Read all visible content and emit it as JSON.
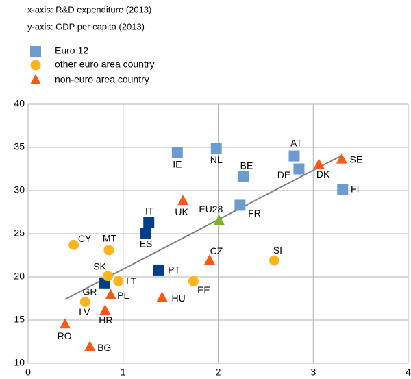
{
  "chart_data": {
    "type": "scatter",
    "header": [
      "x-axis: R&D expenditure (2013)",
      "y-axis: GDP per capita (2013)"
    ],
    "xlim": [
      0,
      4
    ],
    "xticks": [
      0,
      1,
      2,
      3,
      4
    ],
    "ylim": [
      10,
      40
    ],
    "yticks": [
      10,
      15,
      20,
      25,
      30,
      35,
      40
    ],
    "grid": true,
    "series": [
      {
        "name": "Euro 12",
        "marker": "square",
        "color": "#6c9bd2",
        "labels": [
          "IE",
          "NL",
          "AT",
          "DE",
          "BE",
          "FR",
          "FI",
          "IT",
          "ES",
          "PT",
          "GR"
        ],
        "x": [
          1.57,
          1.98,
          2.8,
          2.85,
          2.27,
          2.23,
          3.31,
          1.27,
          1.24,
          1.37,
          0.8
        ],
        "y": [
          34.4,
          34.9,
          34.0,
          32.5,
          31.6,
          28.3,
          30.1,
          26.3,
          25.0,
          20.8,
          19.3
        ],
        "colors": [
          "#6c9bd2",
          "#6c9bd2",
          "#6c9bd2",
          "#6c9bd2",
          "#6c9bd2",
          "#6c9bd2",
          "#6c9bd2",
          "#003f8a",
          "#003f8a",
          "#003f8a",
          "#003f8a"
        ]
      },
      {
        "name": "other euro area country",
        "marker": "circle",
        "color": "#ffb41e",
        "labels": [
          "CY",
          "MT",
          "SK",
          "LT",
          "LV",
          "EE",
          "SI"
        ],
        "x": [
          0.48,
          0.85,
          0.84,
          0.95,
          0.6,
          1.74,
          2.59
        ],
        "y": [
          23.7,
          23.1,
          20.1,
          19.5,
          17.1,
          19.5,
          21.9
        ]
      },
      {
        "name": "non-euro area country",
        "marker": "triangle",
        "color": "#f85a16",
        "labels": [
          "RO",
          "BG",
          "HR",
          "PL",
          "HU",
          "CZ",
          "UK",
          "DK",
          "SE"
        ],
        "x": [
          0.39,
          0.65,
          0.81,
          0.87,
          1.41,
          1.91,
          1.63,
          3.06,
          3.3
        ],
        "y": [
          14.5,
          11.9,
          16.1,
          17.9,
          17.6,
          21.9,
          28.8,
          33.0,
          33.6
        ]
      }
    ],
    "reference_point": {
      "label": "EU28",
      "x": 2.01,
      "y": 26.5,
      "color": "#77b530",
      "marker": "triangle"
    },
    "trendline": {
      "x": [
        0.39,
        3.29
      ],
      "y": [
        17.4,
        34.0
      ],
      "color": "#808080"
    }
  }
}
